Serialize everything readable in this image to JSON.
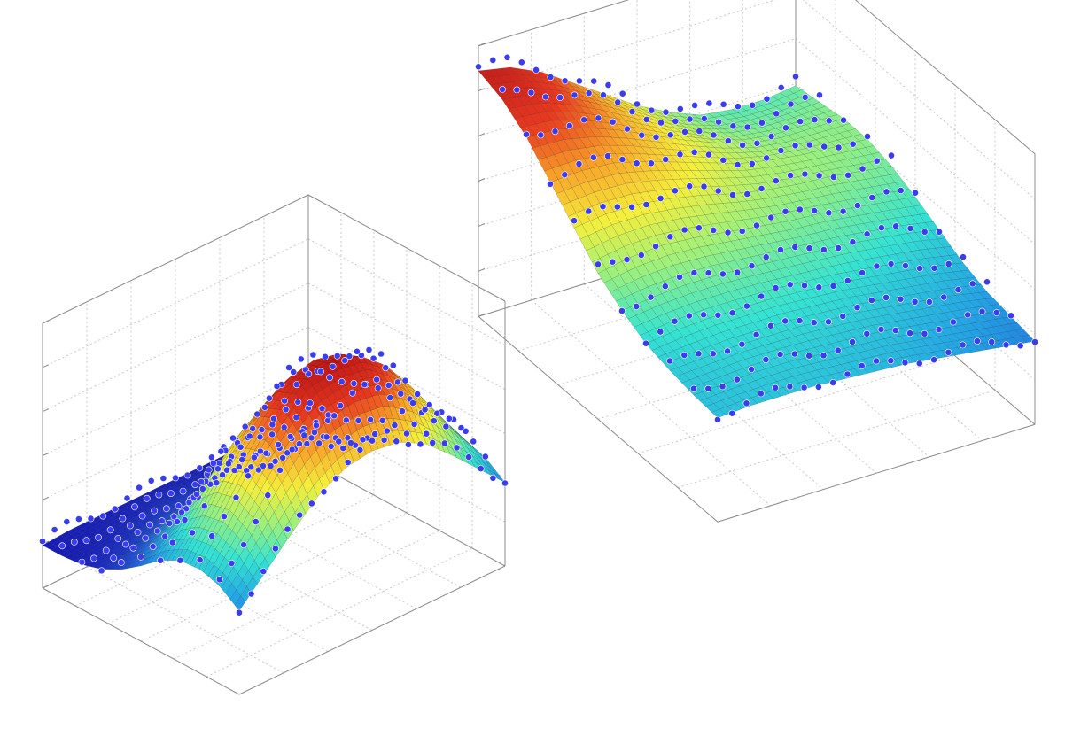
{
  "colors": {
    "background": "#ffffff",
    "marker": "#3b3bf0",
    "marker_edge": "#ffffff",
    "box": "#8c8c8c",
    "grid": "#c8c8c8",
    "mesh": "#1a1a1a",
    "colormap": [
      "#1616b4",
      "#1f4fd8",
      "#23a6e6",
      "#35e3d2",
      "#9cf07c",
      "#f4ef3c",
      "#f8a52a",
      "#e8381f",
      "#c01818"
    ]
  },
  "chart_data": [
    {
      "type": "surface",
      "name": "left-surface-plot",
      "title": "",
      "xlabel": "",
      "ylabel": "",
      "zlabel": "",
      "grid": true,
      "legend": "none",
      "colormap": "jet",
      "has_scatter_overlay": true,
      "u_range": [
        0,
        1
      ],
      "v_range": [
        0,
        1
      ],
      "z_range": [
        0,
        1
      ],
      "view": "azimuth-left",
      "peak": [
        0.78,
        0.45
      ],
      "peak_spread": [
        0.17,
        0.27
      ],
      "rows_u": [
        0.0,
        0.1,
        0.2,
        0.3,
        0.4,
        0.5,
        0.6,
        0.7,
        0.8,
        0.9,
        1.0
      ],
      "cols_v": [
        0.0,
        0.1,
        0.2,
        0.3,
        0.4,
        0.5,
        0.6,
        0.7,
        0.8,
        0.9,
        1.0
      ],
      "z": [
        [
          0.01,
          0.02,
          0.02,
          0.02,
          0.02,
          0.02,
          0.02,
          0.02,
          0.02,
          0.02,
          0.01
        ],
        [
          0.01,
          0.02,
          0.03,
          0.04,
          0.05,
          0.05,
          0.05,
          0.04,
          0.03,
          0.02,
          0.01
        ],
        [
          0.02,
          0.04,
          0.06,
          0.08,
          0.09,
          0.09,
          0.09,
          0.08,
          0.06,
          0.04,
          0.02
        ],
        [
          0.05,
          0.08,
          0.12,
          0.15,
          0.17,
          0.18,
          0.17,
          0.15,
          0.12,
          0.08,
          0.05
        ],
        [
          0.1,
          0.16,
          0.23,
          0.29,
          0.33,
          0.34,
          0.33,
          0.29,
          0.23,
          0.16,
          0.1
        ],
        [
          0.17,
          0.27,
          0.38,
          0.48,
          0.55,
          0.57,
          0.55,
          0.48,
          0.38,
          0.27,
          0.17
        ],
        [
          0.25,
          0.4,
          0.56,
          0.69,
          0.78,
          0.81,
          0.78,
          0.69,
          0.56,
          0.4,
          0.25
        ],
        [
          0.3,
          0.48,
          0.67,
          0.83,
          0.94,
          0.97,
          0.94,
          0.83,
          0.67,
          0.48,
          0.3
        ],
        [
          0.31,
          0.5,
          0.7,
          0.87,
          0.98,
          1.0,
          0.98,
          0.87,
          0.7,
          0.5,
          0.31
        ],
        [
          0.28,
          0.45,
          0.62,
          0.77,
          0.87,
          0.89,
          0.87,
          0.77,
          0.62,
          0.45,
          0.28
        ],
        [
          0.21,
          0.34,
          0.47,
          0.59,
          0.66,
          0.68,
          0.66,
          0.59,
          0.47,
          0.34,
          0.21
        ]
      ]
    },
    {
      "type": "surface",
      "name": "right-surface-plot",
      "title": "",
      "xlabel": "",
      "ylabel": "",
      "zlabel": "",
      "grid": true,
      "legend": "none",
      "colormap": "jet",
      "has_scatter_overlay": true,
      "u_range": [
        0,
        1
      ],
      "v_range": [
        0,
        1
      ],
      "z_range": [
        0,
        1
      ],
      "view": "azimuth-right",
      "rows_u": [
        0.0,
        0.1,
        0.2,
        0.3,
        0.4,
        0.5,
        0.6,
        0.7,
        0.8,
        0.9,
        1.0
      ],
      "cols_v": [
        0.0,
        0.1,
        0.2,
        0.3,
        0.4,
        0.5,
        0.6,
        0.7,
        0.8,
        0.9,
        1.0
      ],
      "z": [
        [
          0.98,
          0.95,
          0.88,
          0.78,
          0.68,
          0.58,
          0.5,
          0.44,
          0.42,
          0.42,
          0.44
        ],
        [
          0.94,
          0.92,
          0.86,
          0.78,
          0.69,
          0.6,
          0.52,
          0.47,
          0.45,
          0.45,
          0.46
        ],
        [
          0.86,
          0.85,
          0.81,
          0.75,
          0.68,
          0.61,
          0.55,
          0.5,
          0.48,
          0.48,
          0.48
        ],
        [
          0.74,
          0.75,
          0.74,
          0.7,
          0.65,
          0.6,
          0.55,
          0.52,
          0.5,
          0.49,
          0.48
        ],
        [
          0.62,
          0.64,
          0.64,
          0.62,
          0.59,
          0.55,
          0.52,
          0.5,
          0.49,
          0.47,
          0.45
        ],
        [
          0.5,
          0.53,
          0.54,
          0.53,
          0.51,
          0.49,
          0.47,
          0.46,
          0.44,
          0.42,
          0.4
        ],
        [
          0.42,
          0.44,
          0.45,
          0.45,
          0.44,
          0.43,
          0.42,
          0.41,
          0.39,
          0.37,
          0.34
        ],
        [
          0.36,
          0.38,
          0.39,
          0.39,
          0.39,
          0.38,
          0.37,
          0.35,
          0.33,
          0.31,
          0.28
        ],
        [
          0.33,
          0.34,
          0.35,
          0.35,
          0.35,
          0.34,
          0.33,
          0.31,
          0.29,
          0.27,
          0.24
        ],
        [
          0.31,
          0.32,
          0.33,
          0.33,
          0.32,
          0.31,
          0.3,
          0.28,
          0.26,
          0.24,
          0.22
        ],
        [
          0.3,
          0.31,
          0.31,
          0.31,
          0.3,
          0.29,
          0.28,
          0.26,
          0.24,
          0.22,
          0.2
        ]
      ]
    }
  ]
}
